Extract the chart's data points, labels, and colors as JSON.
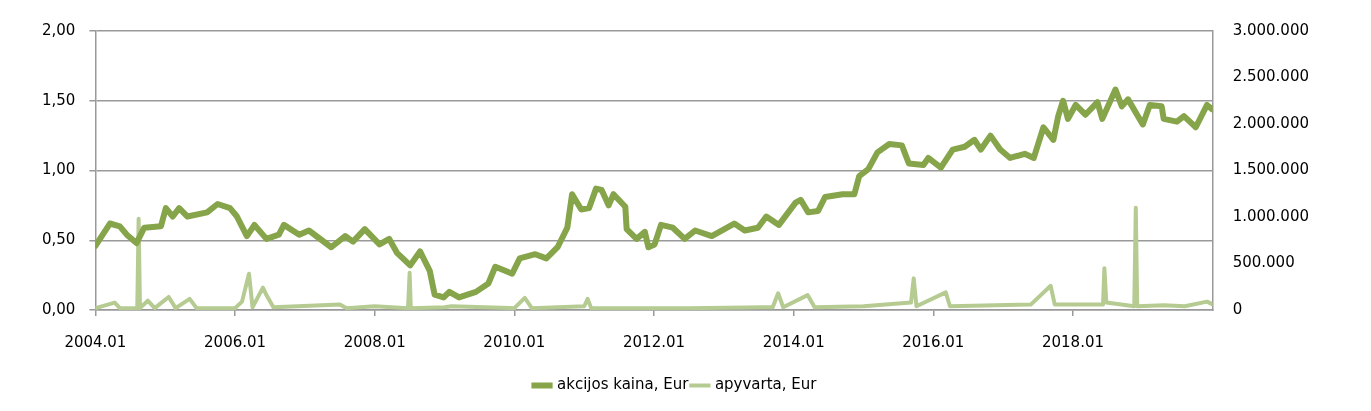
{
  "chart_data": {
    "type": "line",
    "xlim": [
      "2004-01-01",
      "2020-01-01"
    ],
    "xticks": [
      {
        "value": "2004-01",
        "label": "2004.01"
      },
      {
        "value": "2006-01",
        "label": "2006.01"
      },
      {
        "value": "2008-01",
        "label": "2008.01"
      },
      {
        "value": "2010-01",
        "label": "2010.01"
      },
      {
        "value": "2012-01",
        "label": "2012.01"
      },
      {
        "value": "2014-01",
        "label": "2014.01"
      },
      {
        "value": "2016-01",
        "label": "2016.01"
      },
      {
        "value": "2018-01",
        "label": "2018.01"
      }
    ],
    "ylim": [
      0,
      2
    ],
    "yticks": [
      {
        "value": 0,
        "label": "0,00"
      },
      {
        "value": 0.5,
        "label": "0,50"
      },
      {
        "value": 1,
        "label": "1,00"
      },
      {
        "value": 1.5,
        "label": "1,50"
      },
      {
        "value": 2,
        "label": "2,00"
      }
    ],
    "y2lim": [
      0,
      3000000
    ],
    "y2ticks": [
      0,
      {
        "value": 500000,
        "label": "500.000"
      },
      {
        "value": 1000000,
        "label": "1.000.000"
      },
      {
        "value": 1500000,
        "label": "1.500.000"
      },
      {
        "value": 2000000,
        "label": "2.000.000"
      },
      {
        "value": 2500000,
        "label": "2.500.000"
      },
      {
        "value": 3000000,
        "label": "3.000.000"
      }
    ],
    "grid": "y",
    "legend": "bottom",
    "marker": "none",
    "line_style": "solid",
    "series": [
      {
        "name": "akcijos kaina, Eur",
        "color": "#86a44a",
        "x": [
          "2004-01-01",
          "2004-03-16",
          "2004-05-07",
          "2004-06-13",
          "2004-08-03",
          "2004-09-13",
          "2004-12-09",
          "2005-01-04",
          "2005-02-10",
          "2005-03-13",
          "2005-04-26",
          "2005-08-07",
          "2005-10-01",
          "2005-12-05",
          "2006-01-11",
          "2006-03-02",
          "2006-04-11",
          "2006-06-13",
          "2006-08-17",
          "2006-09-13",
          "2006-12-02",
          "2007-01-22",
          "2007-05-17",
          "2007-07-29",
          "2007-09-09",
          "2007-11-10",
          "2008-01-26",
          "2008-03-16",
          "2008-04-26",
          "2008-07-04",
          "2008-08-25",
          "2008-10-15",
          "2008-11-10",
          "2008-12-27",
          "2009-01-26",
          "2009-03-16",
          "2009-06-13",
          "2009-08-17",
          "2009-09-23",
          "2009-12-20",
          "2010-01-29",
          "2010-04-19",
          "2010-06-16",
          "2010-08-14",
          "2010-10-04",
          "2010-10-29",
          "2010-12-16",
          "2011-01-26",
          "2011-03-02",
          "2011-04-01",
          "2011-05-07",
          "2011-06-02",
          "2011-08-03",
          "2011-08-10",
          "2011-10-01",
          "2011-11-14",
          "2011-12-02",
          "2012-01-04",
          "2012-02-07",
          "2012-04-08",
          "2012-06-09",
          "2012-08-03",
          "2012-10-29",
          "2013-02-25",
          "2013-04-19",
          "2013-06-27",
          "2013-08-10",
          "2013-10-15",
          "2014-01-11",
          "2014-02-07",
          "2014-03-16",
          "2014-05-07",
          "2014-06-13",
          "2014-09-13",
          "2014-11-14",
          "2014-12-09",
          "2015-01-26",
          "2015-03-13",
          "2015-05-14",
          "2015-07-19",
          "2015-08-25",
          "2015-11-10",
          "2015-12-05",
          "2016-02-10",
          "2016-04-11",
          "2016-06-13",
          "2016-08-03",
          "2016-09-06",
          "2016-10-26",
          "2016-12-16",
          "2017-02-07",
          "2017-04-22",
          "2017-06-09",
          "2017-07-29",
          "2017-09-20",
          "2017-10-15",
          "2017-11-10",
          "2017-12-05",
          "2018-01-15",
          "2018-03-05",
          "2018-05-07",
          "2018-06-02",
          "2018-08-10",
          "2018-09-13",
          "2018-10-15",
          "2019-01-01",
          "2019-02-07",
          "2019-04-08",
          "2019-04-19",
          "2019-06-27",
          "2019-08-03",
          "2019-10-04",
          "2019-12-02",
          "2019-12-28"
        ],
        "values": [
          0.46,
          0.62,
          0.6,
          0.54,
          0.48,
          0.59,
          0.6,
          0.73,
          0.67,
          0.73,
          0.67,
          0.7,
          0.76,
          0.73,
          0.67,
          0.53,
          0.61,
          0.51,
          0.54,
          0.61,
          0.54,
          0.57,
          0.45,
          0.53,
          0.49,
          0.58,
          0.47,
          0.51,
          0.41,
          0.32,
          0.42,
          0.28,
          0.11,
          0.09,
          0.13,
          0.09,
          0.13,
          0.19,
          0.31,
          0.26,
          0.37,
          0.4,
          0.37,
          0.45,
          0.59,
          0.83,
          0.72,
          0.73,
          0.87,
          0.86,
          0.75,
          0.83,
          0.74,
          0.58,
          0.51,
          0.56,
          0.45,
          0.47,
          0.61,
          0.59,
          0.51,
          0.57,
          0.53,
          0.62,
          0.57,
          0.59,
          0.67,
          0.61,
          0.77,
          0.79,
          0.7,
          0.71,
          0.81,
          0.83,
          0.83,
          0.96,
          1.01,
          1.13,
          1.19,
          1.18,
          1.05,
          1.04,
          1.09,
          1.02,
          1.15,
          1.17,
          1.22,
          1.15,
          1.25,
          1.15,
          1.09,
          1.12,
          1.09,
          1.31,
          1.22,
          1.39,
          1.5,
          1.37,
          1.47,
          1.4,
          1.49,
          1.37,
          1.58,
          1.46,
          1.51,
          1.33,
          1.47,
          1.46,
          1.37,
          1.35,
          1.39,
          1.31,
          1.47,
          1.44
        ]
      },
      {
        "name": "apyvarta, Eur",
        "color": "#b5cb92",
        "axis": "y2",
        "x": [
          "2004-01-01",
          "2004-04-11",
          "2004-05-07",
          "2004-08-07",
          "2004-08-14",
          "2004-08-21",
          "2004-10-01",
          "2004-11-07",
          "2005-01-19",
          "2005-02-25",
          "2005-05-07",
          "2005-06-13",
          "2006-01-01",
          "2006-02-07",
          "2006-03-13",
          "2006-04-01",
          "2006-05-25",
          "2006-06-13",
          "2006-07-19",
          "2007-07-01",
          "2007-08-07",
          "2008-01-01",
          "2008-06-23",
          "2008-07-01",
          "2008-07-07",
          "2009-01-01",
          "2009-02-07",
          "2010-01-01",
          "2010-02-25",
          "2010-04-01",
          "2011-01-01",
          "2011-01-19",
          "2011-02-07",
          "2012-07-01",
          "2013-09-13",
          "2013-10-11",
          "2013-11-07",
          "2014-03-13",
          "2014-04-19",
          "2015-01-01",
          "2015-09-06",
          "2015-09-20",
          "2015-10-04",
          "2016-03-05",
          "2016-03-27",
          "2017-05-25",
          "2017-09-06",
          "2017-09-27",
          "2018-06-06",
          "2018-06-13",
          "2018-06-23",
          "2018-11-17",
          "2018-11-25",
          "2018-12-02",
          "2019-04-19",
          "2019-08-07",
          "2019-12-02",
          "2020-01-01"
        ],
        "values": [
          20000,
          80000,
          20000,
          20000,
          980000,
          20000,
          100000,
          20000,
          140000,
          20000,
          120000,
          20000,
          20000,
          90000,
          390000,
          30000,
          240000,
          160000,
          30000,
          60000,
          20000,
          40000,
          20000,
          400000,
          20000,
          30000,
          40000,
          20000,
          130000,
          20000,
          40000,
          120000,
          20000,
          20000,
          30000,
          180000,
          30000,
          160000,
          30000,
          40000,
          80000,
          340000,
          40000,
          190000,
          40000,
          60000,
          260000,
          60000,
          60000,
          450000,
          80000,
          40000,
          1100000,
          40000,
          50000,
          40000,
          90000,
          60000
        ]
      }
    ]
  }
}
